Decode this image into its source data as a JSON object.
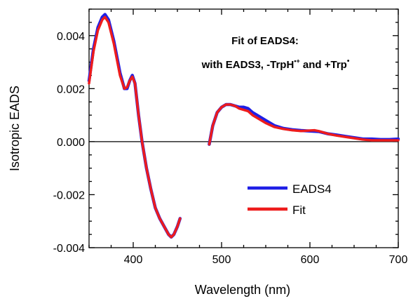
{
  "chart_data": {
    "type": "line",
    "xlabel": "Wavelength (nm)",
    "ylabel": "Isotropic EADS",
    "xlim": [
      350,
      700
    ],
    "ylim": [
      -0.004,
      0.005
    ],
    "x_ticks": [
      {
        "value": 400,
        "label": "400"
      },
      {
        "value": 500,
        "label": "500"
      },
      {
        "value": 600,
        "label": "600"
      },
      {
        "value": 700,
        "label": "700"
      }
    ],
    "y_ticks": [
      {
        "value": -0.004,
        "label": "-0.004"
      },
      {
        "value": -0.002,
        "label": "-0.002"
      },
      {
        "value": 0.0,
        "label": "0.000"
      },
      {
        "value": 0.002,
        "label": "0.002"
      },
      {
        "value": 0.004,
        "label": "0.004"
      }
    ],
    "zero_line": true,
    "grid": false,
    "legend_position": "lower-right",
    "annotation": {
      "line1": "Fit of EADS4:",
      "line2_main": "with EADS3, -TrpH",
      "line2_sup1": "•+",
      "line2_mid": " and +Trp",
      "line2_sup2": "•"
    },
    "series": [
      {
        "name": "EADS4",
        "color": "#1f1fe6",
        "segments": [
          [
            [
              350,
              0.0023
            ],
            [
              355,
              0.0035
            ],
            [
              360,
              0.0043
            ],
            [
              365,
              0.0047
            ],
            [
              368,
              0.0048
            ],
            [
              372,
              0.0046
            ],
            [
              378,
              0.0038
            ],
            [
              385,
              0.0026
            ],
            [
              390,
              0.002
            ],
            [
              393,
              0.002
            ],
            [
              396,
              0.0023
            ],
            [
              399,
              0.0025
            ],
            [
              402,
              0.0022
            ],
            [
              406,
              0.001
            ],
            [
              410,
              0.0
            ],
            [
              415,
              -0.001
            ],
            [
              420,
              -0.0018
            ],
            [
              425,
              -0.0025
            ],
            [
              430,
              -0.0029
            ],
            [
              435,
              -0.0032
            ],
            [
              440,
              -0.0035
            ],
            [
              443,
              -0.0036
            ],
            [
              446,
              -0.0035
            ],
            [
              450,
              -0.0032
            ],
            [
              453,
              -0.0029
            ]
          ],
          [
            [
              486,
              -0.0001
            ],
            [
              490,
              0.0006
            ],
            [
              495,
              0.0011
            ],
            [
              500,
              0.0013
            ],
            [
              505,
              0.0014
            ],
            [
              510,
              0.0014
            ],
            [
              515,
              0.00135
            ],
            [
              520,
              0.0013
            ],
            [
              525,
              0.0013
            ],
            [
              530,
              0.00125
            ],
            [
              535,
              0.0011
            ],
            [
              540,
              0.001
            ],
            [
              550,
              0.0008
            ],
            [
              560,
              0.0006
            ],
            [
              570,
              0.0005
            ],
            [
              580,
              0.00045
            ],
            [
              590,
              0.00042
            ],
            [
              600,
              0.0004
            ],
            [
              610,
              0.00038
            ],
            [
              620,
              0.0003
            ],
            [
              630,
              0.00025
            ],
            [
              640,
              0.0002
            ],
            [
              650,
              0.00015
            ],
            [
              660,
              0.0001
            ],
            [
              670,
              0.0001
            ],
            [
              680,
              8e-05
            ],
            [
              690,
              8e-05
            ],
            [
              700,
              0.0001
            ]
          ]
        ]
      },
      {
        "name": "Fit",
        "color": "#ee1c1c",
        "segments": [
          [
            [
              350,
              0.0022
            ],
            [
              355,
              0.0034
            ],
            [
              360,
              0.0042
            ],
            [
              365,
              0.0046
            ],
            [
              368,
              0.0047
            ],
            [
              372,
              0.0045
            ],
            [
              378,
              0.0037
            ],
            [
              385,
              0.0025
            ],
            [
              390,
              0.002
            ],
            [
              393,
              0.00205
            ],
            [
              396,
              0.0023
            ],
            [
              399,
              0.00245
            ],
            [
              402,
              0.0022
            ],
            [
              406,
              0.001
            ],
            [
              410,
              0.0
            ],
            [
              415,
              -0.001
            ],
            [
              420,
              -0.0018
            ],
            [
              425,
              -0.0025
            ],
            [
              430,
              -0.0029
            ],
            [
              435,
              -0.0032
            ],
            [
              440,
              -0.0035
            ],
            [
              443,
              -0.0036
            ],
            [
              446,
              -0.0035
            ],
            [
              450,
              -0.0032
            ],
            [
              453,
              -0.0029
            ]
          ],
          [
            [
              486,
              -0.0001
            ],
            [
              490,
              0.0006
            ],
            [
              495,
              0.0011
            ],
            [
              500,
              0.0013
            ],
            [
              505,
              0.0014
            ],
            [
              510,
              0.0014
            ],
            [
              515,
              0.00135
            ],
            [
              520,
              0.00125
            ],
            [
              525,
              0.0012
            ],
            [
              530,
              0.00115
            ],
            [
              535,
              0.001
            ],
            [
              540,
              0.0009
            ],
            [
              550,
              0.0007
            ],
            [
              560,
              0.00055
            ],
            [
              570,
              0.00048
            ],
            [
              580,
              0.00043
            ],
            [
              590,
              0.0004
            ],
            [
              600,
              0.00042
            ],
            [
              605,
              0.00043
            ],
            [
              610,
              0.0004
            ],
            [
              620,
              0.0003
            ],
            [
              630,
              0.00023
            ],
            [
              640,
              0.00018
            ],
            [
              650,
              0.00013
            ],
            [
              660,
              8e-05
            ],
            [
              670,
              5e-05
            ],
            [
              680,
              5e-05
            ],
            [
              690,
              5e-05
            ],
            [
              700,
              5e-05
            ]
          ]
        ]
      }
    ]
  }
}
